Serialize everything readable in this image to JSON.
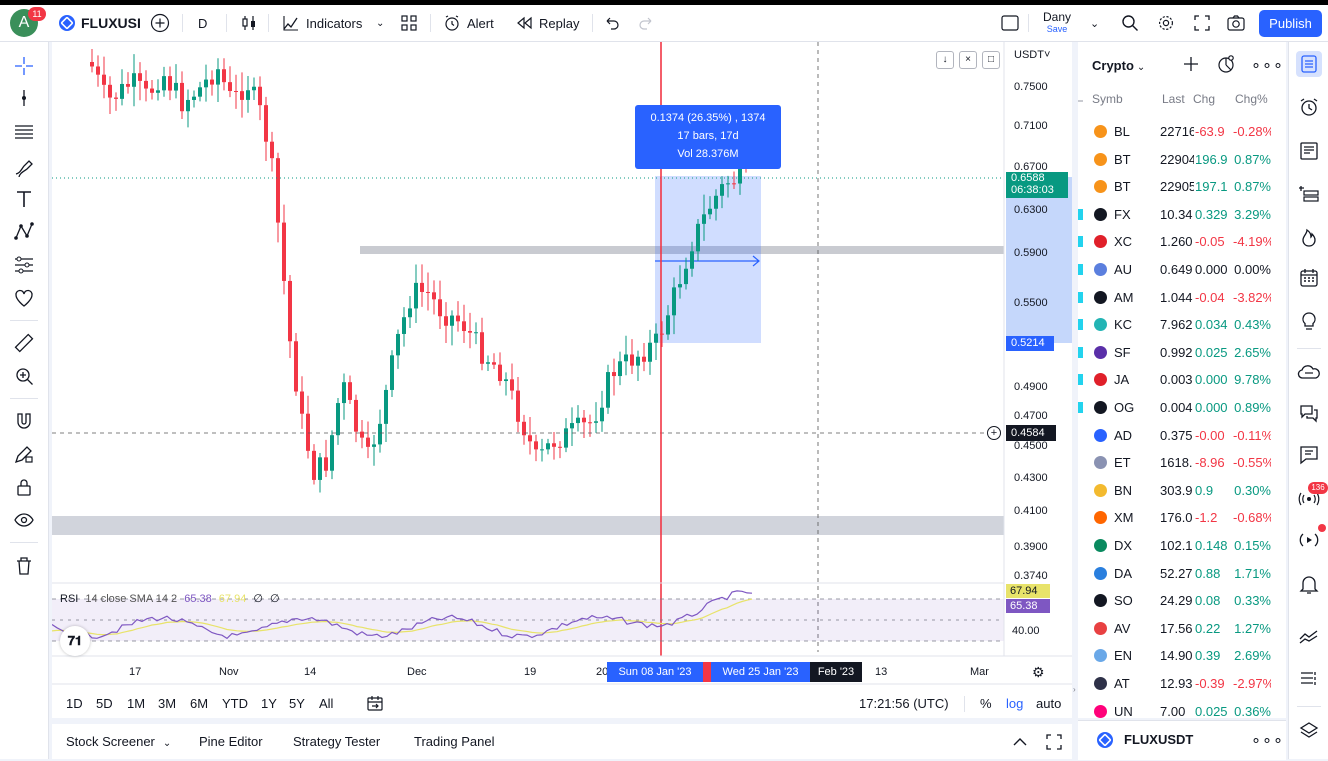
{
  "header": {
    "avatar_letter": "A",
    "notif_count": "11",
    "symbol": "FLUXUSI",
    "interval": "D",
    "indicators_label": "Indicators",
    "alert_label": "Alert",
    "replay_label": "Replay",
    "layout_name": "Dany",
    "layout_status": "Save",
    "publish_label": "Publish"
  },
  "chart": {
    "currency": "USDT",
    "price_labels": [
      "0.7500",
      "0.7100",
      "0.6700",
      "0.6300",
      "0.5900",
      "0.5500",
      "0.4900",
      "0.4700",
      "0.4500",
      "0.4300",
      "0.4100",
      "0.3900",
      "0.3740"
    ],
    "current_price": "0.6588",
    "countdown": "06:38:03",
    "range_low_label": "0.5214",
    "cursor_price": "0.4584",
    "measure": {
      "line1": "0.1374 (26.35%) , 1374",
      "line2": "17 bars, 17d",
      "line3": "Vol 28.376M"
    },
    "rsi_legend": {
      "name": "RSI",
      "params": "14 close SMA 14 2",
      "v1": "65.38",
      "v2": "67.94",
      "v3": "∅",
      "v4": "∅"
    },
    "rsi_labels": {
      "upper": "67.94",
      "lower": "65.38",
      "level": "40.00"
    },
    "time_labels": [
      "17",
      "Nov",
      "14",
      "Dec",
      "19",
      "20",
      "13",
      "Mar"
    ],
    "range_start": "Sun 08 Jan '23",
    "range_end": "Wed 25 Jan '23",
    "feb_label": "Feb '23"
  },
  "timeframes": [
    "1D",
    "5D",
    "1M",
    "3M",
    "6M",
    "YTD",
    "1Y",
    "5Y",
    "All"
  ],
  "clock": "17:21:56 (UTC)",
  "scale_opts": {
    "pct": "%",
    "log": "log",
    "auto": "auto"
  },
  "bottom_tabs": [
    "Stock Screener",
    "Pine Editor",
    "Strategy Tester",
    "Trading Panel"
  ],
  "watchlist": {
    "title": "Crypto",
    "headers": {
      "sym": "Symb",
      "last": "Last",
      "chg": "Chg",
      "chgp": "Chg%"
    },
    "rows": [
      {
        "sym": "BL",
        "last": "22716",
        "chg": "-63.9",
        "chgp": "-0.28%",
        "dir": "down",
        "color": "#f7931a",
        "flag": false
      },
      {
        "sym": "BT",
        "last": "22904",
        "chg": "196.9",
        "chgp": "0.87%",
        "dir": "up",
        "color": "#f7931a",
        "flag": false
      },
      {
        "sym": "BT",
        "last": "22905",
        "chg": "197.1",
        "chgp": "0.87%",
        "dir": "up",
        "color": "#f7931a",
        "flag": false
      },
      {
        "sym": "FX",
        "last": "10.34",
        "chg": "0.329",
        "chgp": "3.29%",
        "dir": "up",
        "color": "#131722",
        "flag": true
      },
      {
        "sym": "XC",
        "last": "1.260",
        "chg": "-0.05",
        "chgp": "-4.19%",
        "dir": "down",
        "color": "#e0202a",
        "flag": true
      },
      {
        "sym": "AU",
        "last": "0.649",
        "chg": "0.000",
        "chgp": "0.00%",
        "dir": "flat",
        "color": "#5b7fde",
        "flag": true
      },
      {
        "sym": "AM",
        "last": "1.044",
        "chg": "-0.04",
        "chgp": "-3.82%",
        "dir": "down",
        "color": "#131722",
        "flag": true
      },
      {
        "sym": "KC",
        "last": "7.962",
        "chg": "0.034",
        "chgp": "0.43%",
        "dir": "up",
        "color": "#23b4b4",
        "flag": true
      },
      {
        "sym": "SF",
        "last": "0.992",
        "chg": "0.025",
        "chgp": "2.65%",
        "dir": "up",
        "color": "#5a2fa8",
        "flag": true
      },
      {
        "sym": "JA",
        "last": "0.003",
        "chg": "0.000",
        "chgp": "9.78%",
        "dir": "up",
        "color": "#e0202a",
        "flag": true
      },
      {
        "sym": "OG",
        "last": "0.004",
        "chg": "0.000",
        "chgp": "0.89%",
        "dir": "up",
        "color": "#131722",
        "flag": true
      },
      {
        "sym": "AD",
        "last": "0.375",
        "chg": "-0.00",
        "chgp": "-0.11%",
        "dir": "down",
        "color": "#2962ff",
        "flag": false
      },
      {
        "sym": "ET",
        "last": "1618.",
        "chg": "-8.96",
        "chgp": "-0.55%",
        "dir": "down",
        "color": "#8a92b2",
        "flag": false
      },
      {
        "sym": "BN",
        "last": "303.9",
        "chg": "0.9",
        "chgp": "0.30%",
        "dir": "up",
        "color": "#f3ba2f",
        "flag": false
      },
      {
        "sym": "XM",
        "last": "176.0",
        "chg": "-1.2",
        "chgp": "-0.68%",
        "dir": "down",
        "color": "#ff6600",
        "flag": false
      },
      {
        "sym": "DX",
        "last": "102.1",
        "chg": "0.148",
        "chgp": "0.15%",
        "dir": "up",
        "color": "#0a8a5f",
        "flag": false
      },
      {
        "sym": "DA",
        "last": "52.27",
        "chg": "0.88",
        "chgp": "1.71%",
        "dir": "up",
        "color": "#2a7fde",
        "flag": false
      },
      {
        "sym": "SO",
        "last": "24.29",
        "chg": "0.08",
        "chgp": "0.33%",
        "dir": "up",
        "color": "#131722",
        "flag": false
      },
      {
        "sym": "AV",
        "last": "17.56",
        "chg": "0.22",
        "chgp": "1.27%",
        "dir": "up",
        "color": "#e84142",
        "flag": false
      },
      {
        "sym": "EN",
        "last": "14.90",
        "chg": "0.39",
        "chgp": "2.69%",
        "dir": "up",
        "color": "#6aa8e8",
        "flag": false
      },
      {
        "sym": "AT",
        "last": "12.93",
        "chg": "-0.39",
        "chgp": "-2.97%",
        "dir": "down",
        "color": "#2e3148",
        "flag": false
      },
      {
        "sym": "UN",
        "last": "7.00",
        "chg": "0.025",
        "chgp": "0.36%",
        "dir": "up",
        "color": "#ff007a",
        "flag": false
      }
    ],
    "footer_symbol": "FLUXUSDT"
  },
  "right_badge": "136"
}
